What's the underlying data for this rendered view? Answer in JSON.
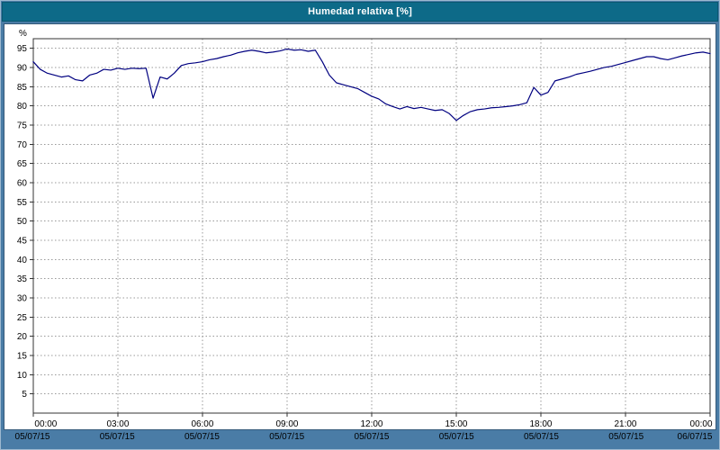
{
  "title": "Humedad relativa [%]",
  "colors": {
    "window_background": "#4a7ca6",
    "titlebar": "#0d6a88",
    "titlebar_text": "#ffffff",
    "plot_background": "#ffffff",
    "grid": "#999999",
    "frame": "#333333",
    "line": "#000080",
    "tick_text": "#000000"
  },
  "chart_data": {
    "type": "line",
    "title": "Humedad relativa [%]",
    "xlabel": "",
    "ylabel": "%",
    "xlim_hours": [
      0,
      24
    ],
    "ylim": [
      0,
      97.5
    ],
    "grid": true,
    "y_ticks": [
      5,
      10,
      15,
      20,
      25,
      30,
      35,
      40,
      45,
      50,
      55,
      60,
      65,
      70,
      75,
      80,
      85,
      90,
      95
    ],
    "x_ticks": [
      {
        "hour": 0,
        "time": "00:00",
        "date": "05/07/15"
      },
      {
        "hour": 3,
        "time": "03:00",
        "date": "05/07/15"
      },
      {
        "hour": 6,
        "time": "06:00",
        "date": "05/07/15"
      },
      {
        "hour": 9,
        "time": "09:00",
        "date": "05/07/15"
      },
      {
        "hour": 12,
        "time": "12:00",
        "date": "05/07/15"
      },
      {
        "hour": 15,
        "time": "15:00",
        "date": "05/07/15"
      },
      {
        "hour": 18,
        "time": "18:00",
        "date": "05/07/15"
      },
      {
        "hour": 21,
        "time": "21:00",
        "date": "05/07/15"
      },
      {
        "hour": 24,
        "time": "00:00",
        "date": "06/07/15"
      }
    ],
    "series": [
      {
        "name": "Humedad relativa",
        "color": "#000080",
        "x_start_hours": 0,
        "x_step_hours": 0.25,
        "values": [
          91.5,
          89.5,
          88.5,
          88,
          87.5,
          87.8,
          86.8,
          86.5,
          88,
          88.5,
          89.5,
          89.3,
          89.8,
          89.5,
          89.8,
          89.7,
          89.8,
          82,
          87.5,
          87,
          88.5,
          90.5,
          91,
          91.2,
          91.5,
          92,
          92.3,
          92.8,
          93.2,
          93.8,
          94.2,
          94.5,
          94.2,
          93.8,
          94,
          94.3,
          94.8,
          94.5,
          94.6,
          94.2,
          94.5,
          91.5,
          88,
          86,
          85.5,
          85,
          84.5,
          83.5,
          82.5,
          81.8,
          80.5,
          79.8,
          79.2,
          79.8,
          79.3,
          79.6,
          79.2,
          78.8,
          79,
          78,
          76.2,
          77.5,
          78.5,
          79,
          79.2,
          79.5,
          79.6,
          79.8,
          80,
          80.3,
          80.8,
          84.8,
          82.8,
          83.5,
          86.5,
          87,
          87.5,
          88.2,
          88.6,
          89,
          89.5,
          90,
          90.3,
          90.8,
          91.3,
          91.8,
          92.3,
          92.8,
          92.8,
          92.3,
          92,
          92.5,
          93,
          93.4,
          93.8,
          94,
          93.6
        ]
      }
    ]
  }
}
